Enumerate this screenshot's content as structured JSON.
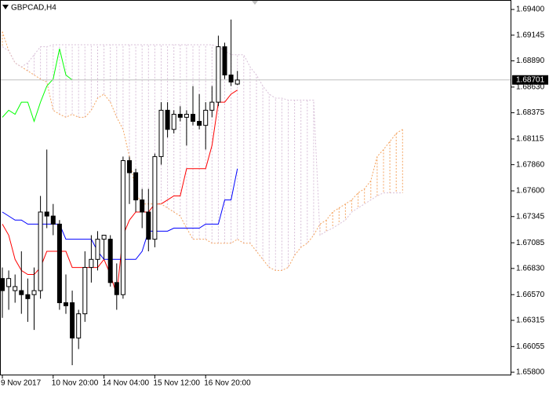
{
  "chart_data": {
    "type": "candlestick",
    "title": "GBPCAD,H4",
    "categories": [
      "9 Nov 2017",
      null,
      null,
      null,
      null,
      null,
      null,
      null,
      "10 Nov 20:00",
      null,
      null,
      null,
      null,
      null,
      null,
      null,
      "14 Nov 04:00",
      null,
      null,
      null,
      null,
      null,
      null,
      null,
      "15 Nov 12:00",
      null,
      null,
      null,
      null,
      null,
      null,
      null,
      "16 Nov 20:00",
      null,
      null,
      null,
      null,
      null,
      null,
      null,
      null,
      null,
      null,
      null,
      null,
      null,
      null,
      null,
      null,
      null,
      null,
      null,
      null,
      null,
      null,
      null,
      null,
      null,
      null,
      null,
      null,
      null,
      null,
      null
    ],
    "open": [
      1.6673,
      1.6665,
      1.6661,
      1.6661,
      1.6657,
      1.6657,
      1.6661,
      1.6739,
      1.6735,
      1.6727,
      1.6649,
      1.6649,
      1.6614,
      1.6638,
      1.6684,
      1.6692,
      1.6712,
      1.6712,
      1.6669,
      1.6657,
      1.679,
      1.6778,
      1.6751,
      1.6739,
      1.6712,
      1.6794,
      1.684,
      1.6821,
      1.6836,
      1.6833,
      1.6836,
      1.6829,
      1.6825,
      1.684,
      1.6848,
      1.6903,
      1.6875,
      1.6866,
      null,
      null,
      null,
      null,
      null,
      null,
      null,
      null,
      null,
      null,
      null,
      null,
      null,
      null,
      null,
      null,
      null,
      null,
      null,
      null,
      null,
      null,
      null,
      null,
      null,
      null
    ],
    "high": [
      1.6684,
      1.6681,
      1.6677,
      1.67,
      1.6673,
      1.6684,
      1.6755,
      1.6801,
      1.6747,
      1.6731,
      1.6677,
      1.6661,
      1.6642,
      1.67,
      1.6716,
      1.672,
      1.6716,
      1.6716,
      1.6688,
      1.6794,
      1.6794,
      1.6782,
      1.6762,
      1.6762,
      1.6797,
      1.6848,
      1.6848,
      1.684,
      1.6844,
      1.684,
      1.6864,
      1.6856,
      1.6848,
      1.6864,
      1.6914,
      1.6907,
      1.693,
      1.6879,
      null,
      null,
      null,
      null,
      null,
      null,
      null,
      null,
      null,
      null,
      null,
      null,
      null,
      null,
      null,
      null,
      null,
      null,
      null,
      null,
      null,
      null,
      null,
      null,
      null,
      null
    ],
    "low": [
      1.6634,
      1.6642,
      1.6649,
      1.6638,
      1.663,
      1.6622,
      1.6653,
      1.6723,
      1.6716,
      1.6642,
      1.6638,
      1.6587,
      1.6603,
      1.663,
      1.6669,
      1.6681,
      1.6692,
      1.6665,
      1.6642,
      1.6653,
      1.6747,
      1.6739,
      1.6723,
      1.67,
      1.6704,
      1.6786,
      1.6813,
      1.6817,
      1.6829,
      1.6805,
      1.6825,
      1.6821,
      1.6801,
      1.6833,
      1.6844,
      1.6871,
      1.6864,
      1.6865,
      null,
      null,
      null,
      null,
      null,
      null,
      null,
      null,
      null,
      null,
      null,
      null,
      null,
      null,
      null,
      null,
      null,
      null,
      null,
      null,
      null,
      null,
      null,
      null,
      null,
      null
    ],
    "close": [
      1.6661,
      1.6673,
      1.6665,
      1.6657,
      1.6653,
      1.6661,
      1.6739,
      1.6735,
      1.6727,
      1.6649,
      1.6646,
      1.6614,
      1.6638,
      1.6684,
      1.6692,
      1.6712,
      1.6716,
      1.6669,
      1.6657,
      1.679,
      1.6778,
      1.6751,
      1.6739,
      1.6712,
      1.6794,
      1.684,
      1.6821,
      1.6836,
      1.6833,
      1.6836,
      1.6829,
      1.6825,
      1.684,
      1.6848,
      1.6903,
      1.6875,
      1.6868,
      1.687,
      null,
      null,
      null,
      null,
      null,
      null,
      null,
      null,
      null,
      null,
      null,
      null,
      null,
      null,
      null,
      null,
      null,
      null,
      null,
      null,
      null,
      null,
      null,
      null,
      null,
      null
    ],
    "up_color": "#ffffff",
    "down_color": "#000000",
    "series": [
      {
        "color": "#ff0000",
        "values": [
          1.6727,
          1.6716,
          1.6692,
          1.6681,
          1.6677,
          1.6677,
          1.6684,
          1.67,
          1.67,
          1.67,
          1.67,
          1.6684,
          1.6684,
          1.6684,
          1.6684,
          1.6684,
          1.6692,
          1.6677,
          1.6657,
          1.6716,
          1.6731,
          1.6739,
          1.6739,
          1.6739,
          1.6747,
          1.6747,
          1.6751,
          1.6755,
          1.6755,
          1.6782,
          1.6782,
          1.6782,
          1.6782,
          1.6805,
          1.6848,
          1.6848,
          1.6856,
          1.686,
          null,
          null,
          null,
          null,
          null,
          null,
          null,
          null,
          null,
          null,
          null,
          null,
          null,
          null,
          null,
          null,
          null,
          null,
          null,
          null,
          null,
          null,
          null,
          null,
          null,
          null
        ]
      },
      {
        "color": "#0000ff",
        "values": [
          1.6739,
          1.6735,
          1.6731,
          1.6731,
          1.6727,
          1.6727,
          1.6727,
          1.6727,
          1.6727,
          1.6727,
          1.6712,
          1.6712,
          1.6712,
          1.6712,
          1.6712,
          1.67,
          1.6692,
          1.6692,
          1.6692,
          1.6692,
          1.6692,
          1.6692,
          1.67,
          1.672,
          1.672,
          1.672,
          1.672,
          1.6723,
          1.6723,
          1.6723,
          1.6723,
          1.6723,
          1.6727,
          1.6727,
          1.6727,
          1.6751,
          1.6751,
          1.6782,
          null,
          null,
          null,
          null,
          null,
          null,
          null,
          null,
          null,
          null,
          null,
          null,
          null,
          null,
          null,
          null,
          null,
          null,
          null,
          null,
          null,
          null,
          null,
          null,
          null,
          null
        ]
      },
      {
        "color": "#00ff00",
        "values": [
          1.6833,
          1.684,
          1.6836,
          1.6848,
          1.6848,
          1.6829,
          1.6848,
          1.6864,
          1.6871,
          1.6901,
          1.6875,
          1.687,
          null,
          null,
          null,
          null,
          null,
          null,
          null,
          null,
          null,
          null,
          null,
          null,
          null,
          null,
          null,
          null,
          null,
          null,
          null,
          null,
          null,
          null,
          null,
          null,
          null,
          null,
          null,
          null,
          null,
          null,
          null,
          null,
          null,
          null,
          null,
          null,
          null,
          null,
          null,
          null,
          null,
          null,
          null,
          null,
          null,
          null,
          null,
          null,
          null,
          null,
          null,
          null
        ]
      },
      {
        "color": "#f4a460",
        "dash": true,
        "cloud": true,
        "values": [
          1.6918,
          1.6899,
          1.6887,
          1.6883,
          1.6879,
          1.6875,
          1.6871,
          1.6868,
          1.684,
          1.6836,
          1.6833,
          1.6836,
          1.6833,
          1.6833,
          1.684,
          1.6852,
          1.6856,
          1.6848,
          1.6833,
          1.6821,
          1.6794,
          1.6758,
          1.6747,
          1.6747,
          1.6747,
          1.6747,
          1.6743,
          1.6739,
          1.6735,
          1.6723,
          1.6712,
          1.6712,
          1.6712,
          1.6708,
          1.6708,
          1.6708,
          1.6708,
          1.6712,
          1.6708,
          1.6708,
          1.67,
          1.6692,
          1.6684,
          1.6681,
          1.6681,
          1.6684,
          1.6696,
          1.6704,
          1.6708,
          1.6716,
          1.6727,
          1.6731,
          1.6739,
          1.6743,
          1.6747,
          1.6751,
          1.6758,
          1.6762,
          1.677,
          1.6794,
          1.6801,
          1.6809,
          1.6817,
          1.6821
        ]
      },
      {
        "color": "#d8bfd8",
        "dash": true,
        "cloud": true,
        "values": [
          1.6903,
          1.6899,
          1.6887,
          1.6883,
          1.6887,
          1.6895,
          1.6903,
          1.6903,
          1.6905,
          1.6905,
          1.6905,
          1.6905,
          1.6905,
          1.6905,
          1.6905,
          1.6905,
          1.6905,
          1.6905,
          1.6905,
          1.6905,
          1.6905,
          1.6905,
          1.6905,
          1.6905,
          1.6905,
          1.6905,
          1.6905,
          1.6905,
          1.6905,
          1.6905,
          1.6905,
          1.6905,
          1.6905,
          1.6905,
          1.6903,
          1.6899,
          1.6895,
          1.6895,
          1.6895,
          1.6883,
          1.6875,
          1.6864,
          1.6856,
          1.6852,
          1.6852,
          1.685,
          1.685,
          1.685,
          1.685,
          1.685,
          1.6716,
          1.672,
          1.6723,
          1.6727,
          1.6731,
          1.6739,
          1.6743,
          1.6747,
          1.6751,
          1.6755,
          1.6758,
          1.6758,
          1.6758,
          1.6758
        ]
      }
    ],
    "last_price": 1.68701,
    "ylim": [
      1.65769,
      1.69494
    ],
    "yticks": [
      {
        "value": 1.694,
        "label": "1.69400"
      },
      {
        "value": 1.69145,
        "label": "1.69145"
      },
      {
        "value": 1.6889,
        "label": "1.68890"
      },
      {
        "value": 1.6863,
        "label": "1.68630"
      },
      {
        "value": 1.68375,
        "label": "1.68375"
      },
      {
        "value": 1.68115,
        "label": "1.68115"
      },
      {
        "value": 1.6786,
        "label": "1.67860"
      },
      {
        "value": 1.676,
        "label": "1.67600"
      },
      {
        "value": 1.67345,
        "label": "1.67345"
      },
      {
        "value": 1.67085,
        "label": "1.67085"
      },
      {
        "value": 1.6683,
        "label": "1.66830"
      },
      {
        "value": 1.6657,
        "label": "1.66570"
      },
      {
        "value": 1.66315,
        "label": "1.66315"
      },
      {
        "value": 1.66055,
        "label": "1.66055"
      },
      {
        "value": 1.658,
        "label": "1.65800"
      }
    ],
    "grid": false
  }
}
